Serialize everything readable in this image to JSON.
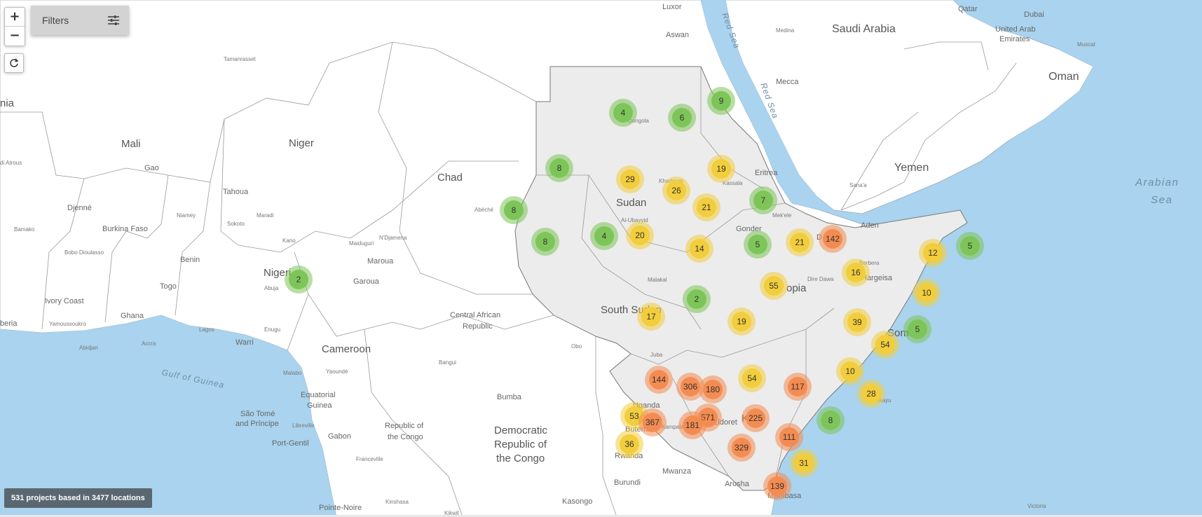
{
  "controls": {
    "zoom_in": "+",
    "zoom_out": "−",
    "reset_icon": "refresh-icon",
    "filters_label": "Filters",
    "filters_icon": "sliders-icon"
  },
  "status_text": "531 projects based in 3477 locations",
  "colors": {
    "water": "#a9d3ee",
    "land": "#ffffff",
    "highlight_region": "#ececec",
    "border": "#8a8a8a",
    "cluster_green": "#7dc558",
    "cluster_yellow": "#f2cd3c",
    "cluster_orange": "#f48c52"
  },
  "labels": {
    "countries": {
      "saudi_arabia": "Saudi Arabia",
      "oman": "Oman",
      "uae": [
        "United Arab",
        "Emirates"
      ],
      "yemen": "Yemen",
      "qatar": "Qatar",
      "mali": "Mali",
      "niger": "Niger",
      "chad": "Chad",
      "sudan": "Sudan",
      "south_sudan": "South Sudan",
      "eritrea": "Eritrea",
      "ethiopia": "opia",
      "somalia": "Soma",
      "burkina_faso": "Burkina Faso",
      "benin": "Benin",
      "togo": "Togo",
      "nigeria": "Nigeri",
      "ghana": "Ghana",
      "ivory_coast": "Ivory Coast",
      "cameroon": "Cameroon",
      "car": [
        "Central African",
        "Republic"
      ],
      "eq_guinea": [
        "Equatorial",
        "Guinea"
      ],
      "gabon": "Gabon",
      "congo": [
        "Republic of",
        "the Congo"
      ],
      "drc": [
        "Democratic",
        "Republic of",
        "the Congo"
      ],
      "uganda": "Uganda",
      "kenya": "K",
      "rwanda": "Rwanda",
      "burundi": "Burundi",
      "sao_tome": [
        "São Tomé",
        "and Príncipe"
      ],
      "liberia": "beria",
      "guinea_left": "nia"
    },
    "cities": {
      "luxor": "Luxor",
      "aswan": "Aswan",
      "medina": "Medina",
      "mecca": "Mecca",
      "dubai": "Dubai",
      "muscat": "Muscat",
      "sanaa": "Sana'a",
      "aden": "Aden",
      "tamanrasset": "Tamanrasset",
      "gao": "Gao",
      "tahoua": "Tahoua",
      "djenne": "Djenné",
      "bamako": "Bamako",
      "niamey": "Niamey",
      "sokoto": "Sokoto",
      "maradi": "Maradi",
      "kano": "Kano",
      "abuja": "Abuja",
      "maiduguri": "Maiduguri",
      "ndjamena": "N'Djamena",
      "maroua": "Maroua",
      "garoua": "Garoua",
      "abeche": "Abéché",
      "bobo": "Bobo Dioulasso",
      "yamoussoukro": "Yamoussoukro",
      "abidjan": "Abidjan",
      "accra": "Accra",
      "lagos": "Lagos",
      "enugu": "Enugu",
      "warri": "Warri",
      "malabo": "Malabo",
      "yaounde": "Yaoundé",
      "libreville": "Libreville",
      "port_gentil": "Port-Gentil",
      "franceville": "Franceville",
      "bangui": "Bangui",
      "bumba": "Bumba",
      "kinshasa": "Kinshasa",
      "pointe_noire": "Pointe-Noire",
      "kikwit": "Kikwit",
      "kasongo": "Kasongo",
      "mwanza": "Mwanza",
      "arusha": "Arusha",
      "mombasa": "Mombasa",
      "victoria": "Victoria",
      "juba": "Juba",
      "butembo": "Butembo",
      "kampala": "Kampala",
      "eldoret": "Eldoret",
      "obo": "Obo",
      "malakal": "Malakal",
      "al_ubayyid": "Al-Ubayyid",
      "khartoum": "Khartoum",
      "kassala": "Kassala",
      "dongola": "Dongola",
      "gonder": "Gonder",
      "mekele": "Mek'ele",
      "djibouti": "D",
      "berbera": "Berbera",
      "hargeisa": "Hargeisa",
      "dire_dawa": "Dire Dawa",
      "kismayo": "mayu",
      "timbuktu": "di Atrous"
    },
    "water": {
      "red_sea_1": "Red Sea",
      "red_sea_2": "Red Sea",
      "arabian_sea_1": "Arabian",
      "arabian_sea_2": "Sea",
      "gulf_of_guinea": "Gulf of Guinea"
    }
  },
  "clusters": [
    {
      "count": "4",
      "level": "green"
    },
    {
      "count": "6",
      "level": "green"
    },
    {
      "count": "9",
      "level": "green"
    },
    {
      "count": "8",
      "level": "green"
    },
    {
      "count": "29",
      "level": "yellow"
    },
    {
      "count": "26",
      "level": "yellow"
    },
    {
      "count": "19",
      "level": "yellow"
    },
    {
      "count": "21",
      "level": "yellow"
    },
    {
      "count": "7",
      "level": "green"
    },
    {
      "count": "8",
      "level": "green"
    },
    {
      "count": "8",
      "level": "green"
    },
    {
      "count": "4",
      "level": "green"
    },
    {
      "count": "20",
      "level": "yellow"
    },
    {
      "count": "14",
      "level": "yellow"
    },
    {
      "count": "5",
      "level": "green"
    },
    {
      "count": "21",
      "level": "yellow"
    },
    {
      "count": "142",
      "level": "orange"
    },
    {
      "count": "12",
      "level": "yellow"
    },
    {
      "count": "5",
      "level": "green"
    },
    {
      "count": "16",
      "level": "yellow"
    },
    {
      "count": "10",
      "level": "yellow"
    },
    {
      "count": "2",
      "level": "green"
    },
    {
      "count": "55",
      "level": "yellow"
    },
    {
      "count": "2",
      "level": "green"
    },
    {
      "count": "17",
      "level": "yellow"
    },
    {
      "count": "19",
      "level": "yellow"
    },
    {
      "count": "39",
      "level": "yellow"
    },
    {
      "count": "5",
      "level": "green"
    },
    {
      "count": "54",
      "level": "yellow"
    },
    {
      "count": "144",
      "level": "orange"
    },
    {
      "count": "306",
      "level": "orange"
    },
    {
      "count": "180",
      "level": "orange"
    },
    {
      "count": "54",
      "level": "yellow"
    },
    {
      "count": "117",
      "level": "orange"
    },
    {
      "count": "10",
      "level": "yellow"
    },
    {
      "count": "28",
      "level": "yellow"
    },
    {
      "count": "53",
      "level": "yellow"
    },
    {
      "count": "367",
      "level": "orange"
    },
    {
      "count": "571",
      "level": "orange"
    },
    {
      "count": "181",
      "level": "orange"
    },
    {
      "count": "225",
      "level": "orange"
    },
    {
      "count": "8",
      "level": "green"
    },
    {
      "count": "36",
      "level": "yellow"
    },
    {
      "count": "329",
      "level": "orange"
    },
    {
      "count": "111",
      "level": "orange"
    },
    {
      "count": "31",
      "level": "yellow"
    },
    {
      "count": "139",
      "level": "orange"
    }
  ]
}
